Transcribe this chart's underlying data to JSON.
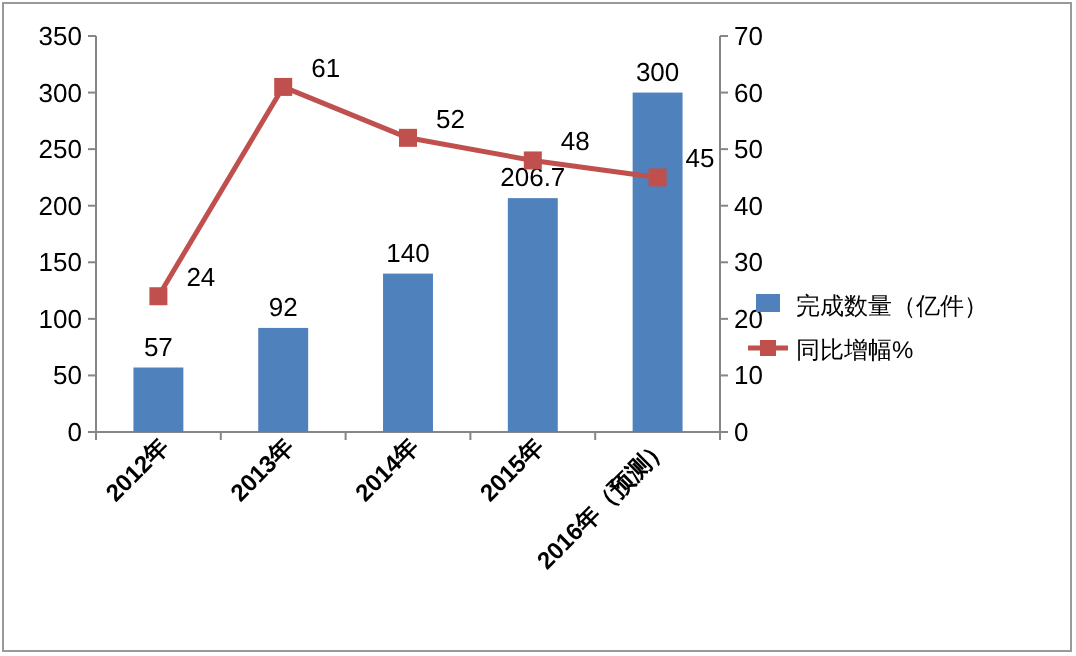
{
  "chart_data": {
    "type": "bar",
    "categories": [
      "2012年",
      "2013年",
      "2014年",
      "2015年",
      "2016年（预测）"
    ],
    "series": [
      {
        "name": "完成数量（亿件）",
        "color": "#4f81bd",
        "values": [
          57,
          92,
          140,
          206.7,
          300
        ]
      },
      {
        "name": "同比增幅%",
        "type": "line",
        "axis": "y2",
        "color": "#c0504d",
        "marker": "square",
        "values": [
          24,
          61,
          52,
          48,
          45
        ]
      }
    ],
    "ylim": [
      0,
      350
    ],
    "yticks": [
      0,
      50,
      100,
      150,
      200,
      250,
      300,
      350
    ],
    "y2lim": [
      0,
      70
    ],
    "y2ticks": [
      0,
      10,
      20,
      30,
      40,
      50,
      60,
      70
    ],
    "legend": "right",
    "data_labels": true,
    "grid": false
  }
}
